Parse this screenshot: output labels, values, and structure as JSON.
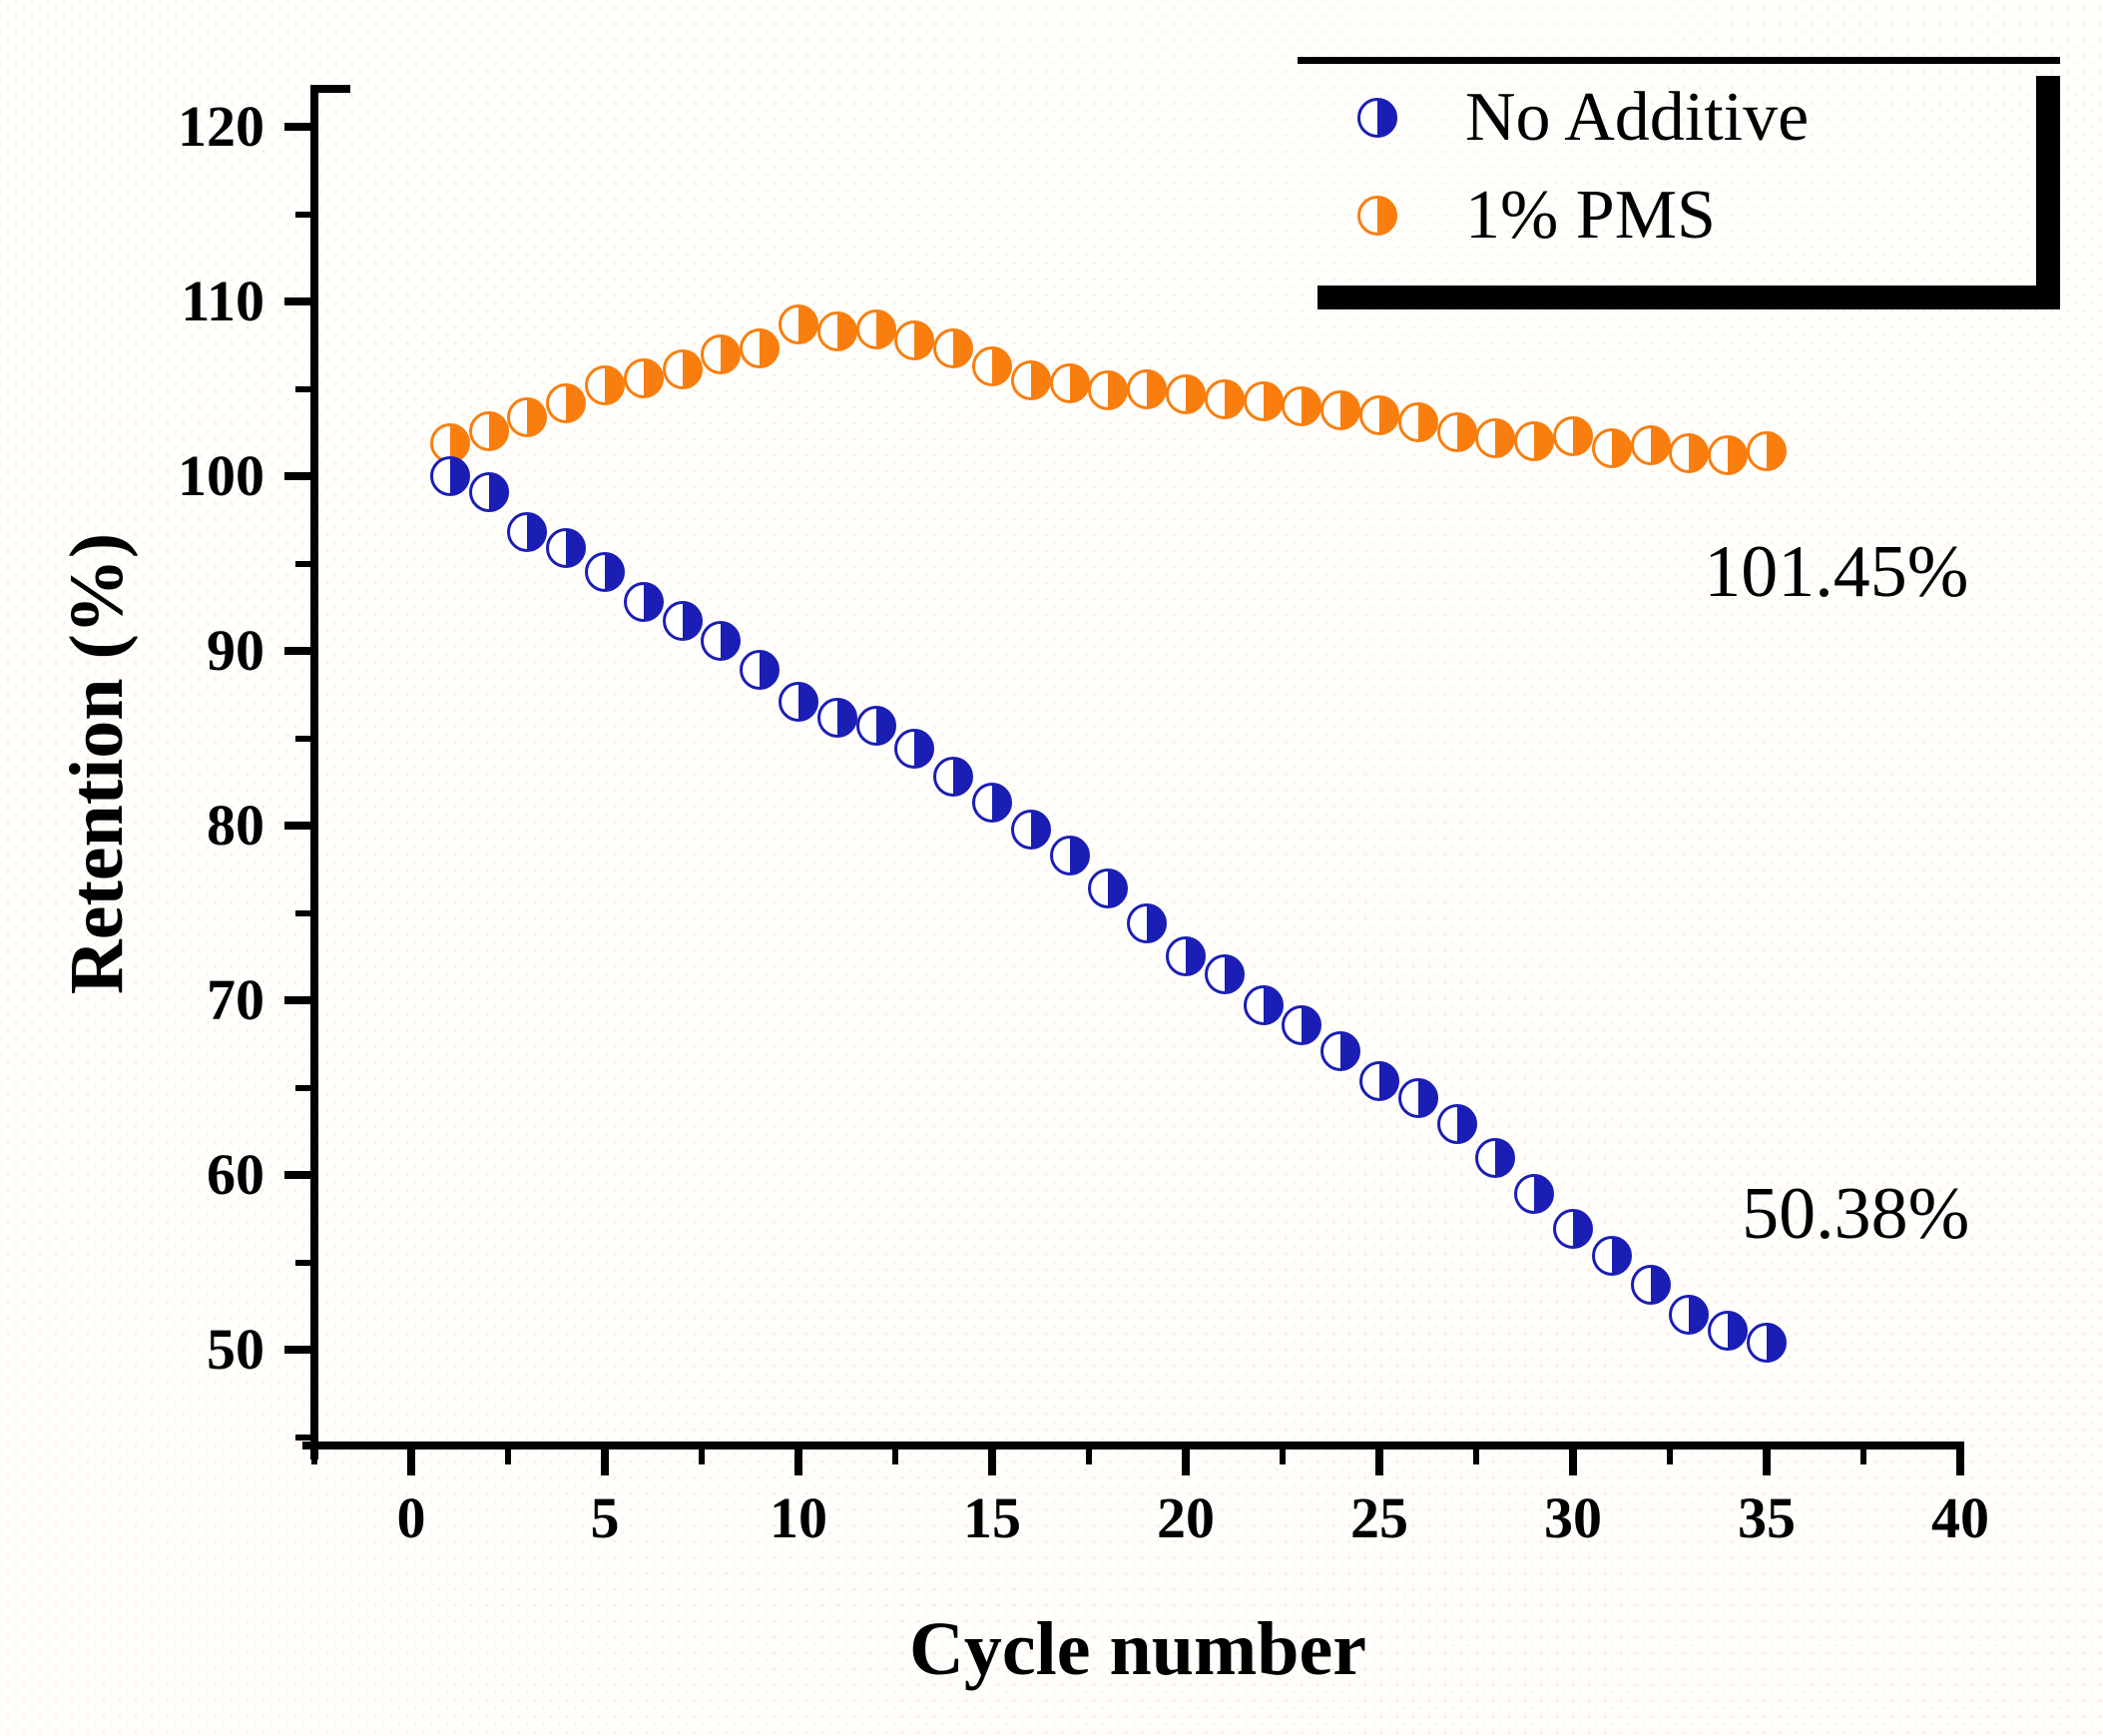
{
  "chart_data": {
    "type": "scatter",
    "title": "",
    "xlabel": "Cycle number",
    "ylabel": "Retention (%)",
    "xlim": [
      -2.5,
      40
    ],
    "ylim": [
      44.5,
      122.5
    ],
    "grid": false,
    "legend_position": "top-right",
    "marker_style": "half-filled-circle",
    "x_major_ticks": [
      0,
      5,
      10,
      15,
      20,
      25,
      30,
      35,
      40
    ],
    "x_minor_ticks": [
      -2.5,
      2.5,
      7.5,
      12.5,
      17.5,
      22.5,
      27.5,
      32.5,
      37.5
    ],
    "y_major_ticks": [
      50,
      60,
      70,
      80,
      90,
      100,
      110,
      120
    ],
    "y_minor_ticks": [
      45,
      55,
      65,
      75,
      85,
      95,
      105,
      115
    ],
    "x": [
      1,
      2,
      3,
      4,
      5,
      6,
      7,
      8,
      9,
      10,
      11,
      12,
      13,
      14,
      15,
      16,
      17,
      18,
      19,
      20,
      21,
      22,
      23,
      24,
      25,
      26,
      27,
      28,
      29,
      30,
      31,
      32,
      33,
      34,
      35
    ],
    "series": [
      {
        "name": "1% PMS",
        "color": "#F97E0E",
        "values": [
          101.9,
          102.6,
          103.4,
          104.2,
          105.2,
          105.6,
          106.1,
          107.0,
          107.3,
          108.7,
          108.3,
          108.4,
          107.8,
          107.3,
          106.3,
          105.5,
          105.3,
          104.9,
          105.0,
          104.7,
          104.4,
          104.3,
          104.0,
          103.8,
          103.5,
          103.1,
          102.5,
          102.2,
          102.0,
          102.3,
          101.6,
          101.8,
          101.3,
          101.2,
          101.45
        ]
      },
      {
        "name": "No Additive",
        "color": "#1B1EB4",
        "values": [
          100.0,
          99.1,
          96.8,
          95.9,
          94.5,
          92.8,
          91.7,
          90.6,
          88.9,
          87.1,
          86.2,
          85.7,
          84.4,
          82.8,
          81.3,
          79.8,
          78.3,
          76.4,
          74.4,
          72.5,
          71.5,
          69.7,
          68.6,
          67.1,
          65.4,
          64.4,
          62.9,
          61.0,
          58.9,
          56.9,
          55.4,
          53.7,
          52.0,
          51.1,
          50.38
        ]
      }
    ],
    "annotations": [
      {
        "text": "101.45%",
        "x": 36.8,
        "y": 94.5,
        "series": "1% PMS"
      },
      {
        "text": "50.38%",
        "x": 37.3,
        "y": 57.8,
        "series": "No Additive"
      }
    ]
  },
  "legend": {
    "items": [
      {
        "label": "No Additive",
        "color": "#1B1EB4"
      },
      {
        "label": "1% PMS",
        "color": "#F97E0E"
      }
    ]
  },
  "colors": {
    "no_additive": "#1B1EB4",
    "pms_orange": "#F97E0E",
    "axis": "#000000",
    "background": "#FFFEFB"
  }
}
